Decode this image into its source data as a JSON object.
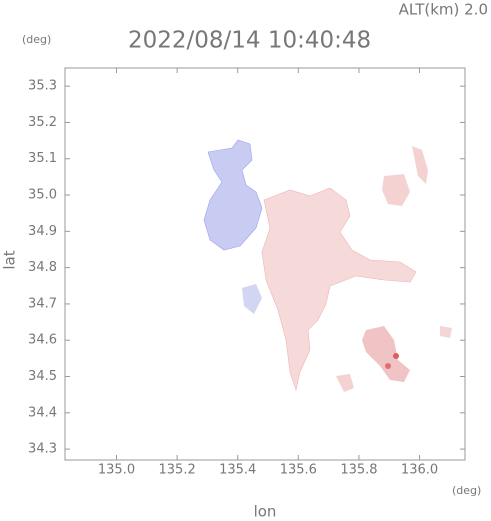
{
  "chart_data": {
    "type": "map",
    "altitude_label": "ALT(km) 2.0",
    "title": "2022/08/14 10:40:48",
    "y_unit": "(deg)",
    "x_unit": "(deg)",
    "ylabel": "lat",
    "xlabel": "lon",
    "xlim": [
      134.83,
      136.15
    ],
    "ylim": [
      34.27,
      35.35
    ],
    "xticks": [
      {
        "value": 135.0,
        "label": "135.0"
      },
      135.2,
      135.4,
      135.6,
      135.8,
      {
        "value": 136.0,
        "label": "136.0"
      }
    ],
    "yticks": [
      34.3,
      34.4,
      34.5,
      34.6,
      34.7,
      34.8,
      34.9,
      {
        "value": 35.0,
        "label": "35.0"
      },
      35.1,
      35.2,
      35.3
    ]
  }
}
